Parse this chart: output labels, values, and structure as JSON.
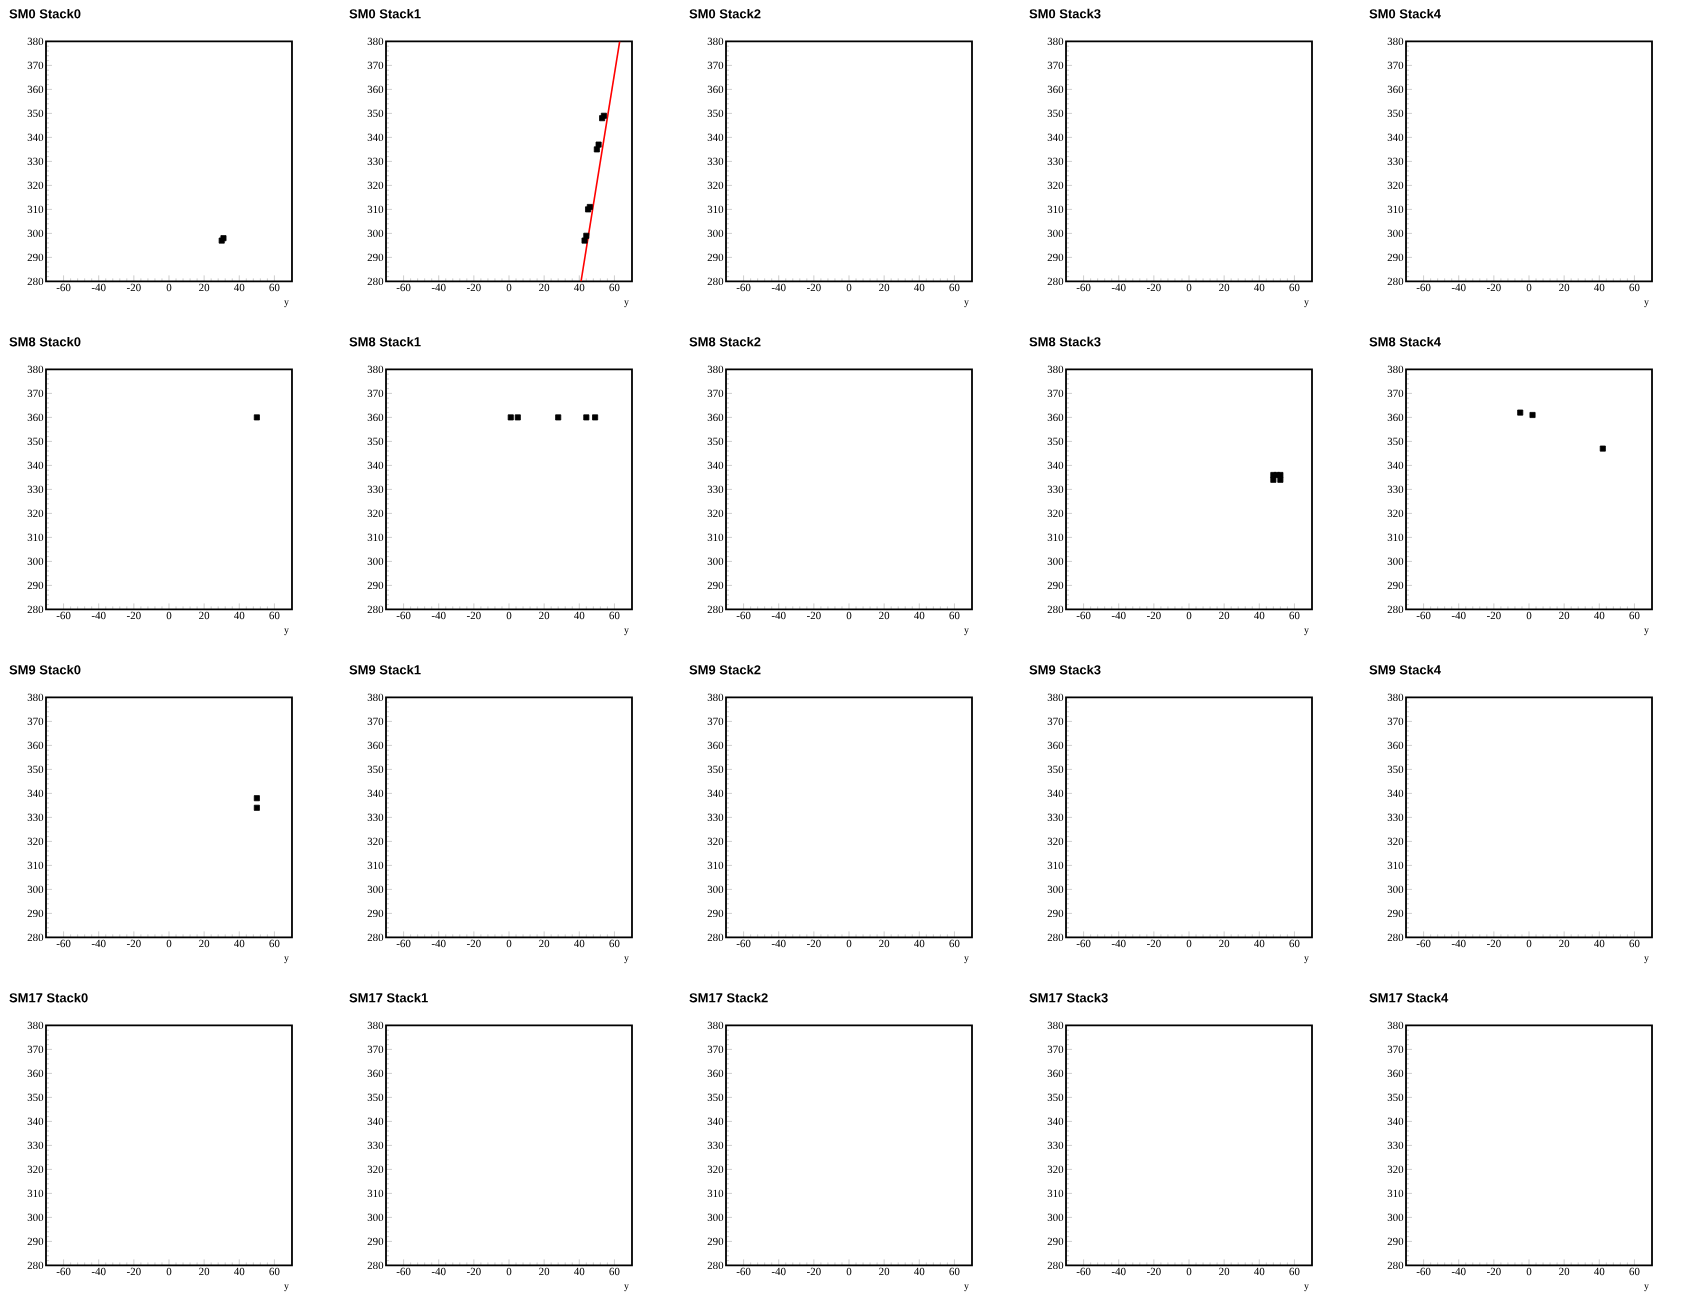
{
  "chart_data": [
    {
      "type": "scatter",
      "title": "SM0 Stack0",
      "xlabel": "y",
      "xlim": [
        -70,
        70
      ],
      "ylim": [
        280,
        380
      ],
      "xticks": [
        -60,
        -40,
        -20,
        0,
        20,
        40,
        60
      ],
      "yticks": [
        280,
        290,
        300,
        310,
        320,
        330,
        340,
        350,
        360,
        370,
        380
      ],
      "marker": "square",
      "series": [
        {
          "color": "#000000",
          "x": [
            30,
            31
          ],
          "values": [
            297,
            298
          ]
        }
      ]
    },
    {
      "type": "scatter",
      "title": "SM0 Stack1",
      "xlabel": "y",
      "xlim": [
        -70,
        70
      ],
      "ylim": [
        280,
        380
      ],
      "xticks": [
        -60,
        -40,
        -20,
        0,
        20,
        40,
        60
      ],
      "yticks": [
        280,
        290,
        300,
        310,
        320,
        330,
        340,
        350,
        360,
        370,
        380
      ],
      "marker": "square",
      "series": [
        {
          "color": "#000000",
          "x": [
            43,
            44,
            45,
            46,
            50,
            51,
            53,
            54
          ],
          "values": [
            297,
            299,
            310,
            311,
            335,
            337,
            348,
            349
          ]
        },
        {
          "type": "line",
          "marker": "none",
          "color": "#ff0000",
          "x": [
            41,
            63
          ],
          "values": [
            280,
            380
          ]
        }
      ]
    },
    {
      "type": "scatter",
      "title": "SM0 Stack2",
      "xlabel": "y",
      "xlim": [
        -70,
        70
      ],
      "ylim": [
        280,
        380
      ],
      "xticks": [
        -60,
        -40,
        -20,
        0,
        20,
        40,
        60
      ],
      "yticks": [
        280,
        290,
        300,
        310,
        320,
        330,
        340,
        350,
        360,
        370,
        380
      ]
    },
    {
      "type": "scatter",
      "title": "SM0 Stack3",
      "xlabel": "y",
      "xlim": [
        -70,
        70
      ],
      "ylim": [
        280,
        380
      ],
      "xticks": [
        -60,
        -40,
        -20,
        0,
        20,
        40,
        60
      ],
      "yticks": [
        280,
        290,
        300,
        310,
        320,
        330,
        340,
        350,
        360,
        370,
        380
      ]
    },
    {
      "type": "scatter",
      "title": "SM0 Stack4",
      "xlabel": "y",
      "xlim": [
        -70,
        70
      ],
      "ylim": [
        280,
        380
      ],
      "xticks": [
        -60,
        -40,
        -20,
        0,
        20,
        40,
        60
      ],
      "yticks": [
        280,
        290,
        300,
        310,
        320,
        330,
        340,
        350,
        360,
        370,
        380
      ]
    },
    {
      "type": "scatter",
      "title": "SM8 Stack0",
      "xlabel": "y",
      "xlim": [
        -70,
        70
      ],
      "ylim": [
        280,
        380
      ],
      "xticks": [
        -60,
        -40,
        -20,
        0,
        20,
        40,
        60
      ],
      "yticks": [
        280,
        290,
        300,
        310,
        320,
        330,
        340,
        350,
        360,
        370,
        380
      ],
      "marker": "square",
      "series": [
        {
          "color": "#000000",
          "x": [
            50
          ],
          "values": [
            360
          ]
        }
      ]
    },
    {
      "type": "scatter",
      "title": "SM8 Stack1",
      "xlabel": "y",
      "xlim": [
        -70,
        70
      ],
      "ylim": [
        280,
        380
      ],
      "xticks": [
        -60,
        -40,
        -20,
        0,
        20,
        40,
        60
      ],
      "yticks": [
        280,
        290,
        300,
        310,
        320,
        330,
        340,
        350,
        360,
        370,
        380
      ],
      "marker": "square",
      "series": [
        {
          "color": "#000000",
          "x": [
            1,
            5,
            28,
            44,
            49
          ],
          "values": [
            360,
            360,
            360,
            360,
            360
          ]
        }
      ]
    },
    {
      "type": "scatter",
      "title": "SM8 Stack2",
      "xlabel": "y",
      "xlim": [
        -70,
        70
      ],
      "ylim": [
        280,
        380
      ],
      "xticks": [
        -60,
        -40,
        -20,
        0,
        20,
        40,
        60
      ],
      "yticks": [
        280,
        290,
        300,
        310,
        320,
        330,
        340,
        350,
        360,
        370,
        380
      ]
    },
    {
      "type": "scatter",
      "title": "SM8 Stack3",
      "xlabel": "y",
      "xlim": [
        -70,
        70
      ],
      "ylim": [
        280,
        380
      ],
      "xticks": [
        -60,
        -40,
        -20,
        0,
        20,
        40,
        60
      ],
      "yticks": [
        280,
        290,
        300,
        310,
        320,
        330,
        340,
        350,
        360,
        370,
        380
      ],
      "marker": "square",
      "series": [
        {
          "color": "#000000",
          "x": [
            48,
            52,
            48,
            52,
            50
          ],
          "values": [
            336,
            336,
            334,
            334,
            336
          ]
        }
      ]
    },
    {
      "type": "scatter",
      "title": "SM8 Stack4",
      "xlabel": "y",
      "xlim": [
        -70,
        70
      ],
      "ylim": [
        280,
        380
      ],
      "xticks": [
        -60,
        -40,
        -20,
        0,
        20,
        40,
        60
      ],
      "yticks": [
        280,
        290,
        300,
        310,
        320,
        330,
        340,
        350,
        360,
        370,
        380
      ],
      "marker": "square",
      "series": [
        {
          "color": "#000000",
          "x": [
            -5,
            2,
            42
          ],
          "values": [
            362,
            361,
            347
          ]
        }
      ]
    },
    {
      "type": "scatter",
      "title": "SM9 Stack0",
      "xlabel": "y",
      "xlim": [
        -70,
        70
      ],
      "ylim": [
        280,
        380
      ],
      "xticks": [
        -60,
        -40,
        -20,
        0,
        20,
        40,
        60
      ],
      "yticks": [
        280,
        290,
        300,
        310,
        320,
        330,
        340,
        350,
        360,
        370,
        380
      ],
      "marker": "square",
      "series": [
        {
          "color": "#000000",
          "x": [
            50,
            50
          ],
          "values": [
            338,
            334
          ]
        }
      ]
    },
    {
      "type": "scatter",
      "title": "SM9 Stack1",
      "xlabel": "y",
      "xlim": [
        -70,
        70
      ],
      "ylim": [
        280,
        380
      ],
      "xticks": [
        -60,
        -40,
        -20,
        0,
        20,
        40,
        60
      ],
      "yticks": [
        280,
        290,
        300,
        310,
        320,
        330,
        340,
        350,
        360,
        370,
        380
      ]
    },
    {
      "type": "scatter",
      "title": "SM9 Stack2",
      "xlabel": "y",
      "xlim": [
        -70,
        70
      ],
      "ylim": [
        280,
        380
      ],
      "xticks": [
        -60,
        -40,
        -20,
        0,
        20,
        40,
        60
      ],
      "yticks": [
        280,
        290,
        300,
        310,
        320,
        330,
        340,
        350,
        360,
        370,
        380
      ]
    },
    {
      "type": "scatter",
      "title": "SM9 Stack3",
      "xlabel": "y",
      "xlim": [
        -70,
        70
      ],
      "ylim": [
        280,
        380
      ],
      "xticks": [
        -60,
        -40,
        -20,
        0,
        20,
        40,
        60
      ],
      "yticks": [
        280,
        290,
        300,
        310,
        320,
        330,
        340,
        350,
        360,
        370,
        380
      ]
    },
    {
      "type": "scatter",
      "title": "SM9 Stack4",
      "xlabel": "y",
      "xlim": [
        -70,
        70
      ],
      "ylim": [
        280,
        380
      ],
      "xticks": [
        -60,
        -40,
        -20,
        0,
        20,
        40,
        60
      ],
      "yticks": [
        280,
        290,
        300,
        310,
        320,
        330,
        340,
        350,
        360,
        370,
        380
      ]
    },
    {
      "type": "scatter",
      "title": "SM17 Stack0",
      "xlabel": "y",
      "xlim": [
        -70,
        70
      ],
      "ylim": [
        280,
        380
      ],
      "xticks": [
        -60,
        -40,
        -20,
        0,
        20,
        40,
        60
      ],
      "yticks": [
        280,
        290,
        300,
        310,
        320,
        330,
        340,
        350,
        360,
        370,
        380
      ]
    },
    {
      "type": "scatter",
      "title": "SM17 Stack1",
      "xlabel": "y",
      "xlim": [
        -70,
        70
      ],
      "ylim": [
        280,
        380
      ],
      "xticks": [
        -60,
        -40,
        -20,
        0,
        20,
        40,
        60
      ],
      "yticks": [
        280,
        290,
        300,
        310,
        320,
        330,
        340,
        350,
        360,
        370,
        380
      ]
    },
    {
      "type": "scatter",
      "title": "SM17 Stack2",
      "xlabel": "y",
      "xlim": [
        -70,
        70
      ],
      "ylim": [
        280,
        380
      ],
      "xticks": [
        -60,
        -40,
        -20,
        0,
        20,
        40,
        60
      ],
      "yticks": [
        280,
        290,
        300,
        310,
        320,
        330,
        340,
        350,
        360,
        370,
        380
      ]
    },
    {
      "type": "scatter",
      "title": "SM17 Stack3",
      "xlabel": "y",
      "xlim": [
        -70,
        70
      ],
      "ylim": [
        280,
        380
      ],
      "xticks": [
        -60,
        -40,
        -20,
        0,
        20,
        40,
        60
      ],
      "yticks": [
        280,
        290,
        300,
        310,
        320,
        330,
        340,
        350,
        360,
        370,
        380
      ]
    },
    {
      "type": "scatter",
      "title": "SM17 Stack4",
      "xlabel": "y",
      "xlim": [
        -70,
        70
      ],
      "ylim": [
        280,
        380
      ],
      "xticks": [
        -60,
        -40,
        -20,
        0,
        20,
        40,
        60
      ],
      "yticks": [
        280,
        290,
        300,
        310,
        320,
        330,
        340,
        350,
        360,
        370,
        380
      ]
    }
  ]
}
